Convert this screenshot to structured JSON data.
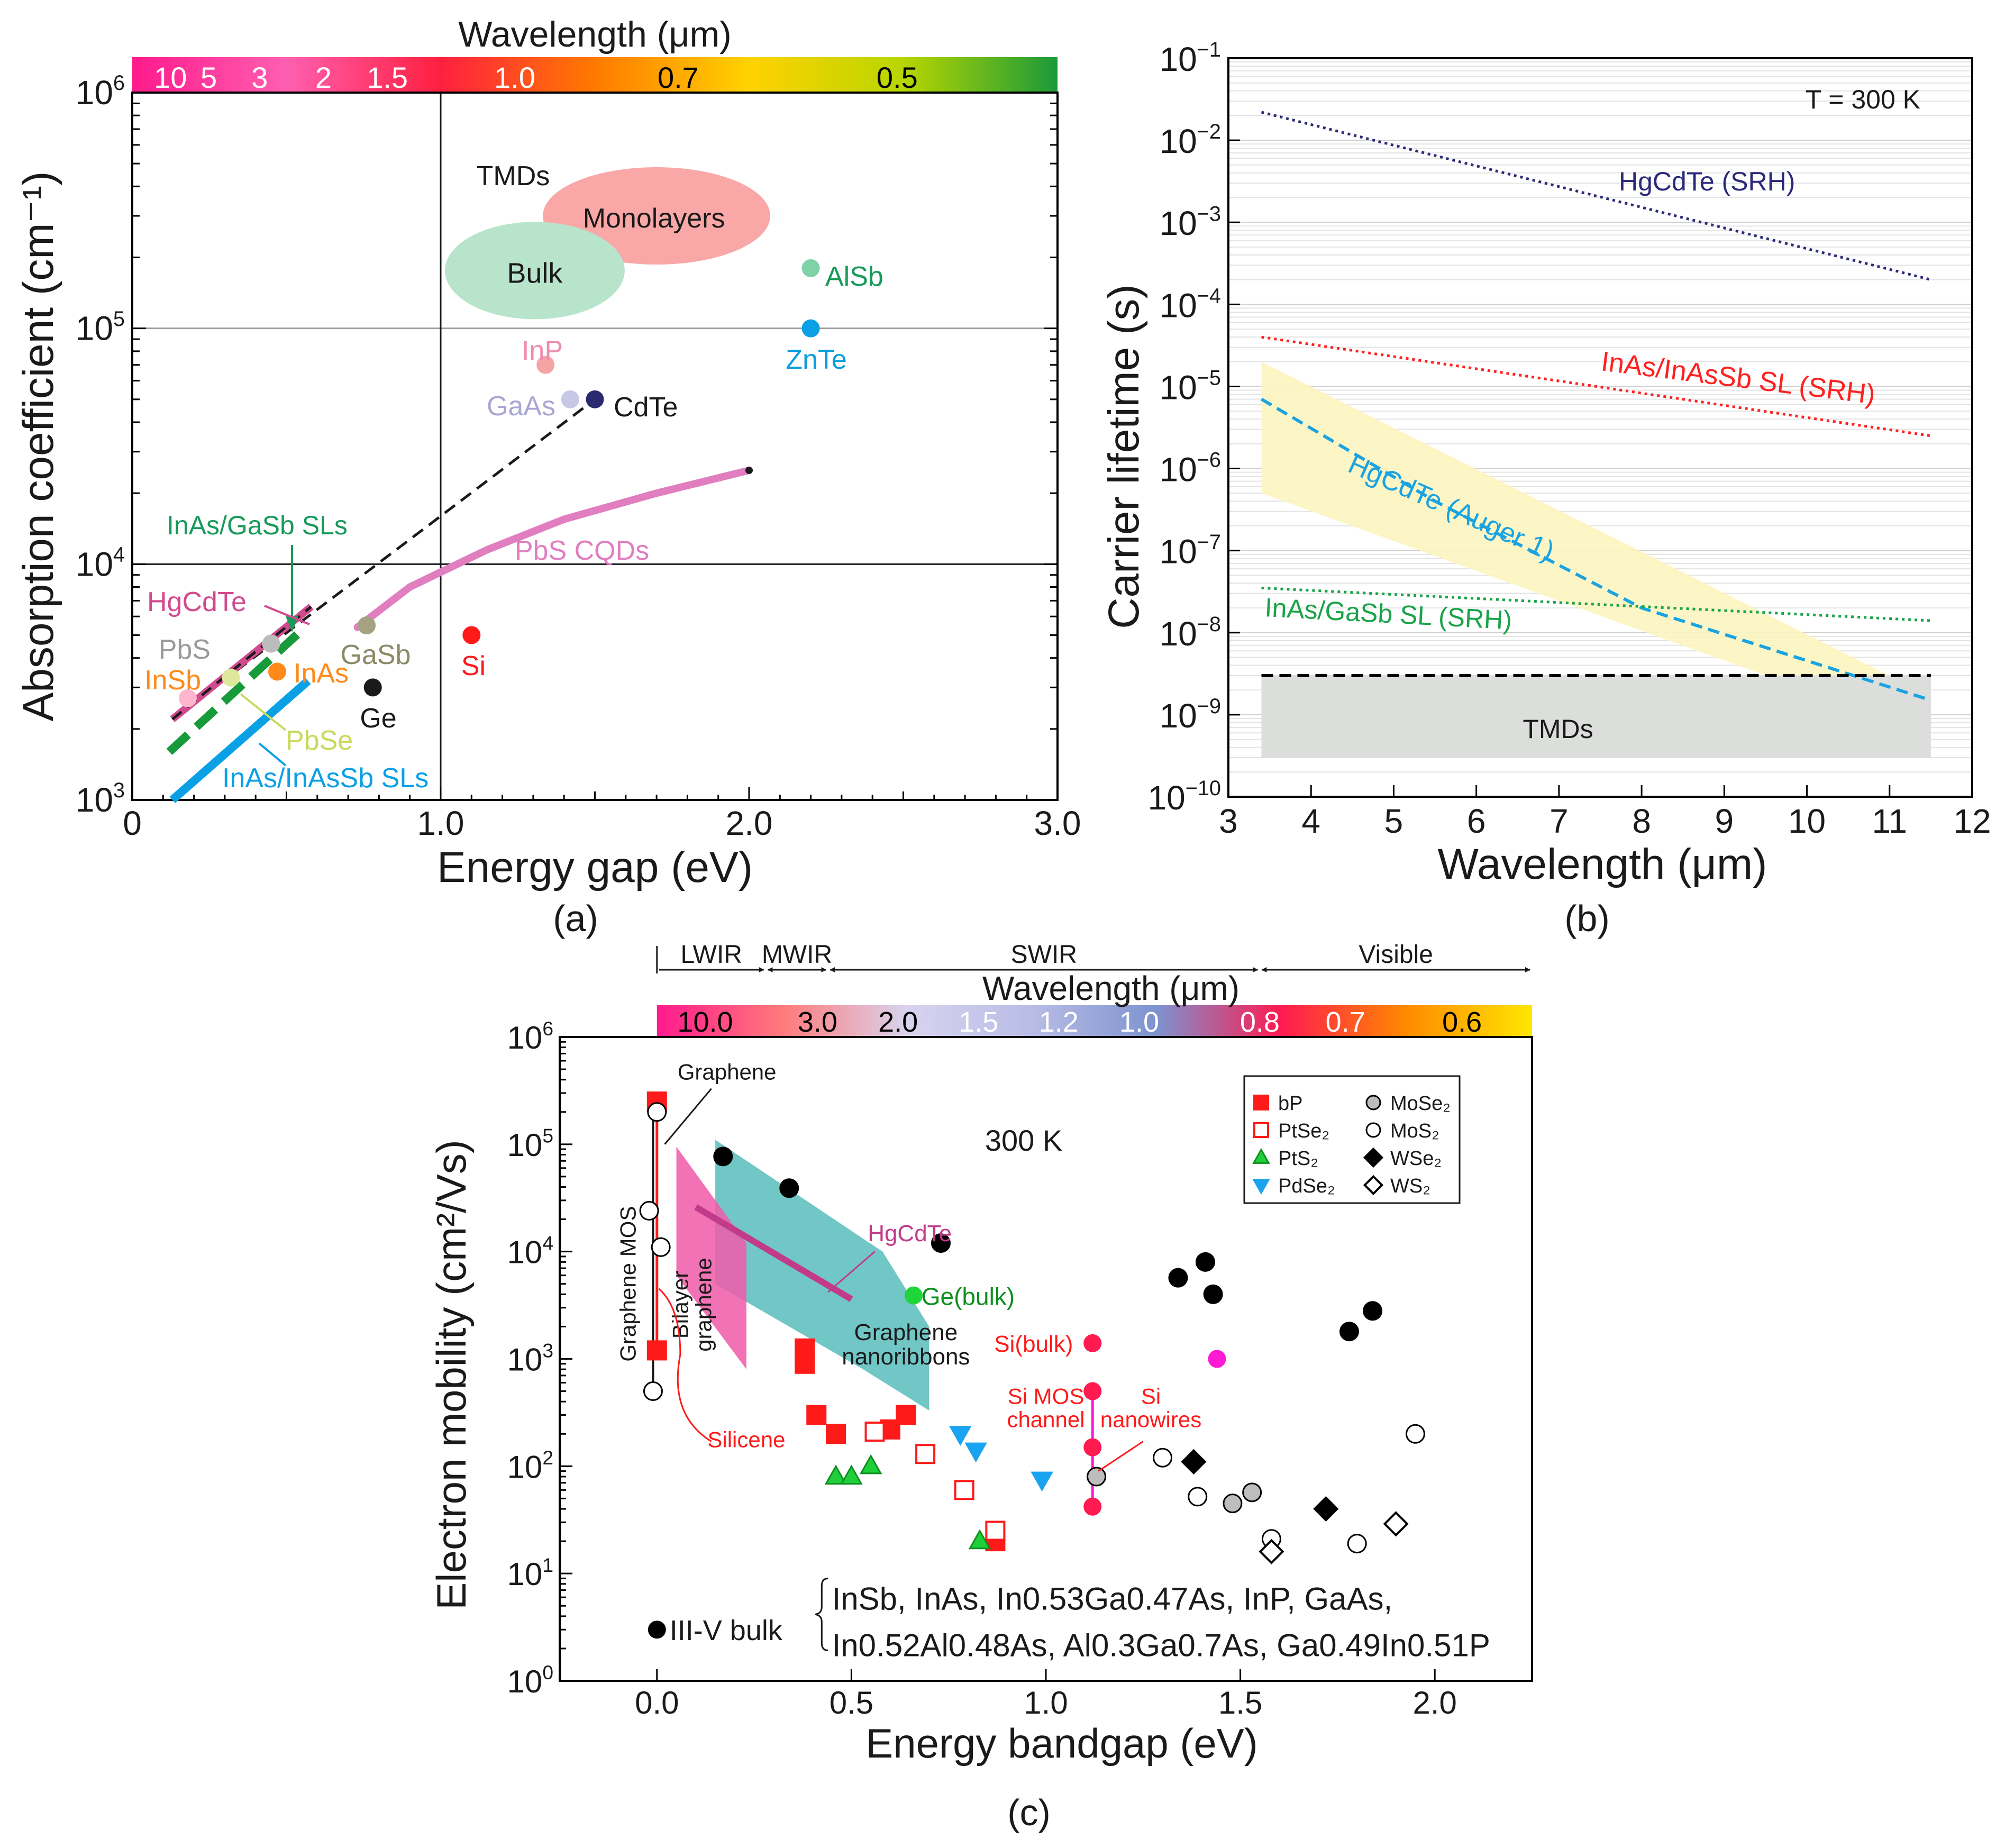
{
  "chart_data": [
    {
      "type": "scatter",
      "panel_label": "(a)",
      "xlabel": "Energy gap (eV)",
      "ylabel": "Absorption coefficient (cm⁻¹)",
      "top_axis_title": "Wavelength (μm)",
      "xlim": [
        0,
        3.0
      ],
      "ylim_log10": [
        3,
        6
      ],
      "x_ticks": [
        {
          "v": 0,
          "label": "0"
        },
        {
          "v": 1,
          "label": "1.0"
        },
        {
          "v": 2,
          "label": "2.0"
        },
        {
          "v": 3,
          "label": "3.0"
        }
      ],
      "y_ticks": [
        {
          "e": 3,
          "label": "10³"
        },
        {
          "e": 4,
          "label": "10⁴"
        },
        {
          "e": 5,
          "label": "10⁵"
        },
        {
          "e": 6,
          "label": "10⁶"
        }
      ],
      "wavelength_bar": {
        "ticks": [
          {
            "v": 0.124,
            "label": "10",
            "color": "#ffffff"
          },
          {
            "v": 0.248,
            "label": "5",
            "color": "#ffffff"
          },
          {
            "v": 0.413,
            "label": "3",
            "color": "#ffffff"
          },
          {
            "v": 0.62,
            "label": "2",
            "color": "#ffffff"
          },
          {
            "v": 0.827,
            "label": "1.5",
            "color": "#ffffff"
          },
          {
            "v": 1.24,
            "label": "1.0",
            "color": "#ffffff"
          },
          {
            "v": 1.77,
            "label": "0.7",
            "color": "#000000"
          },
          {
            "v": 2.48,
            "label": "0.5",
            "color": "#000000"
          }
        ],
        "stops": [
          "#ff1a8c",
          "#ff5fb0",
          "#ff2040",
          "#ff7a00",
          "#ffd200",
          "#b8d600",
          "#1a9a3a"
        ]
      },
      "points": [
        {
          "name": "InP",
          "x": 1.34,
          "y": 70000,
          "color": "#f5a3a3",
          "label_color": "#f08bb0"
        },
        {
          "name": "GaAs",
          "x": 1.42,
          "y": 50000,
          "color": "#c7c7e6",
          "label_color": "#a9a6d4"
        },
        {
          "name": "CdTe",
          "x": 1.5,
          "y": 50000,
          "color": "#2b2a6e",
          "label_color": "#1a1a1a"
        },
        {
          "name": "AlSb",
          "x": 2.2,
          "y": 180000,
          "color": "#7fd1a6",
          "label_color": "#179a5a"
        },
        {
          "name": "ZnTe",
          "x": 2.2,
          "y": 100000,
          "color": "#0aa0e6",
          "label_color": "#0a9ee0"
        },
        {
          "name": "Si",
          "x": 1.1,
          "y": 5000,
          "color": "#ff1a1a",
          "label_color": "#ff1a1a"
        },
        {
          "name": "Ge",
          "x": 0.78,
          "y": 3000,
          "color": "#1a1a1a",
          "label_color": "#1a1a1a"
        },
        {
          "name": "GaSb",
          "x": 0.76,
          "y": 5500,
          "color": "#a4a282",
          "label_color": "#8a8a66"
        },
        {
          "name": "InAs",
          "x": 0.47,
          "y": 3500,
          "color": "#ff8a1a",
          "label_color": "#ff8a1a"
        },
        {
          "name": "PbS",
          "x": 0.45,
          "y": 4600,
          "color": "#bcbcbc",
          "label_color": "#9a9a9a"
        },
        {
          "name": "InSb",
          "x": 0.18,
          "y": 2700,
          "color": "#ffb6cc",
          "label_color": "#ff8a1a"
        },
        {
          "name": "PbSe",
          "x": 0.32,
          "y": 3300,
          "color": "#dde89c",
          "label_color": "#c9d95c"
        }
      ],
      "regions": [
        {
          "name": "Monolayers",
          "label": "Monolayers",
          "x_center": 1.7,
          "y_center": 300000,
          "color": "#f9a7a7"
        },
        {
          "name": "Bulk",
          "label": "Bulk",
          "x_center": 1.3,
          "y_center": 190000,
          "color": "#b9e4cc"
        }
      ],
      "series_labels": {
        "tmds": "TMDs",
        "inas_gasb": "InAs/GaSb SLs",
        "hgcdte": "HgCdTe",
        "pbs_cqds": "PbS CQDs",
        "inas_inassb": "InAs/InAsSb SLs"
      },
      "lines": [
        {
          "name": "dashed-trend",
          "points": [
            [
              0.13,
              2200
            ],
            [
              1.5,
              50000
            ]
          ]
        },
        {
          "name": "PbS CQDs",
          "points": [
            [
              0.73,
              5400
            ],
            [
              0.9,
              8000
            ],
            [
              1.15,
              11500
            ],
            [
              1.4,
              15500
            ],
            [
              1.7,
              20000
            ],
            [
              2.0,
              25000
            ]
          ]
        },
        {
          "name": "HgCdTe",
          "points": [
            [
              0.13,
              2200
            ],
            [
              0.58,
              6600
            ]
          ]
        },
        {
          "name": "InAs/GaSb SLs",
          "points": [
            [
              0.12,
              1600
            ],
            [
              0.56,
              5400
            ]
          ]
        },
        {
          "name": "InAs/InAsSb SLs",
          "points": [
            [
              0.13,
              1000
            ],
            [
              0.57,
              3200
            ]
          ]
        }
      ]
    },
    {
      "type": "line",
      "panel_label": "(b)",
      "xlabel": "Wavelength (μm)",
      "ylabel": "Carrier lifetime (s)",
      "annotation": "T = 300 K",
      "xlim": [
        3,
        12
      ],
      "ylim_log10": [
        -10,
        -1
      ],
      "x_ticks": [
        3,
        4,
        5,
        6,
        7,
        8,
        9,
        10,
        11,
        12
      ],
      "y_ticks": [
        {
          "e": -1,
          "label": "10⁻¹"
        },
        {
          "e": -2,
          "label": "10⁻²"
        },
        {
          "e": -3,
          "label": "10⁻³"
        },
        {
          "e": -4,
          "label": "10⁻⁴"
        },
        {
          "e": -5,
          "label": "10⁻⁵"
        },
        {
          "e": -6,
          "label": "10⁻⁶"
        },
        {
          "e": -7,
          "label": "10⁻⁷"
        },
        {
          "e": -8,
          "label": "10⁻⁸"
        },
        {
          "e": -9,
          "label": "10⁻⁹"
        },
        {
          "e": -10,
          "label": "10⁻¹⁰"
        }
      ],
      "series": [
        {
          "name": "HgCdTe (SRH)",
          "style": "dotted",
          "color": "#2b2a7a",
          "points": [
            [
              3.4,
              0.022
            ],
            [
              11.5,
              0.0002
            ]
          ]
        },
        {
          "name": "InAs/InAsSb SL (SRH)",
          "style": "dotted",
          "color": "#ff2020",
          "points": [
            [
              3.4,
              4e-05
            ],
            [
              11.5,
              2.5e-06
            ]
          ]
        },
        {
          "name": "HgCdTe (Auger 1)",
          "style": "dashed",
          "color": "#1aa3e0",
          "points": [
            [
              3.4,
              7e-06
            ],
            [
              5.5,
              4e-07
            ],
            [
              8,
              2e-08
            ],
            [
              11.5,
              1.5e-09
            ]
          ]
        },
        {
          "name": "InAs/GaSb SL (SRH)",
          "style": "dotted",
          "color": "#1aa34a",
          "points": [
            [
              3.4,
              3.5e-08
            ],
            [
              11.5,
              1.4e-08
            ]
          ]
        },
        {
          "name": "TMDs limit",
          "style": "dashed",
          "color": "#000000",
          "points": [
            [
              3.4,
              3e-09
            ],
            [
              11.5,
              3e-09
            ]
          ]
        }
      ],
      "series_labels": {
        "hgcdte_srh": "HgCdTe (SRH)",
        "inas_inassb": "InAs/InAsSb SL (SRH)",
        "hgcdte_auger": "HgCdTe (Auger 1)",
        "inas_gasb": "InAs/GaSb SL (SRH)",
        "tmds": "TMDs"
      },
      "bands": [
        {
          "name": "HgCdTe Auger band",
          "color": "#fcf5c0",
          "upper": [
            [
              3.4,
              2e-05
            ],
            [
              11,
              3e-09
            ]
          ],
          "lower": [
            [
              3.4,
              5e-07
            ],
            [
              9.5,
              3e-09
            ]
          ]
        },
        {
          "name": "TMDs",
          "color": "#dcdedc",
          "x": [
            3.4,
            11.5
          ],
          "y": [
            3e-10,
            3e-09
          ]
        }
      ]
    },
    {
      "type": "scatter",
      "panel_label": "(c)",
      "xlabel": "Energy bandgap (eV)",
      "ylabel": "Electron mobility (cm²/Vs)",
      "top_axis_title": "Wavelength (μm)",
      "annotation": "300 K",
      "xlim": [
        -0.25,
        2.25
      ],
      "ylim_log10": [
        0,
        6
      ],
      "x_ticks": [
        {
          "v": 0,
          "label": "0.0"
        },
        {
          "v": 0.5,
          "label": "0.5"
        },
        {
          "v": 1,
          "label": "1.0"
        },
        {
          "v": 1.5,
          "label": "1.5"
        },
        {
          "v": 2,
          "label": "2.0"
        }
      ],
      "y_ticks": [
        {
          "e": 0,
          "label": "10⁰"
        },
        {
          "e": 1,
          "label": "10¹"
        },
        {
          "e": 2,
          "label": "10²"
        },
        {
          "e": 3,
          "label": "10³"
        },
        {
          "e": 4,
          "label": "10⁴"
        },
        {
          "e": 5,
          "label": "10⁵"
        },
        {
          "e": 6,
          "label": "10⁶"
        }
      ],
      "wavelength_bar": {
        "ticks": [
          {
            "v": 0.124,
            "label": "10.0",
            "color": "#000000"
          },
          {
            "v": 0.413,
            "label": "3.0",
            "color": "#000000"
          },
          {
            "v": 0.62,
            "label": "2.0",
            "color": "#000000"
          },
          {
            "v": 0.827,
            "label": "1.5",
            "color": "#ffffff"
          },
          {
            "v": 1.033,
            "label": "1.2",
            "color": "#ffffff"
          },
          {
            "v": 1.24,
            "label": "1.0",
            "color": "#ffffff"
          },
          {
            "v": 1.55,
            "label": "0.8",
            "color": "#ffffff"
          },
          {
            "v": 1.77,
            "label": "0.7",
            "color": "#ffffff"
          },
          {
            "v": 2.07,
            "label": "0.6",
            "color": "#000000"
          }
        ],
        "stops": [
          "#ff1a8c",
          "#ff7a7a",
          "#d8d4ee",
          "#b8bce6",
          "#7d93cf",
          "#ff1a50",
          "#ff8a00",
          "#ffe600"
        ]
      },
      "bands_header": [
        {
          "label": "LWIR",
          "from": 0,
          "to": 0.28
        },
        {
          "label": "MWIR",
          "from": 0.28,
          "to": 0.44
        },
        {
          "label": "SWIR",
          "from": 0.44,
          "to": 1.55
        },
        {
          "label": "Visible",
          "from": 1.55,
          "to": 2.25
        }
      ],
      "legend": [
        {
          "label": "bP",
          "marker": "square",
          "fill": "#ff1a1a",
          "stroke": "#ff1a1a"
        },
        {
          "label": "PtSe₂",
          "marker": "square",
          "fill": "#ffffff",
          "stroke": "#ff1a1a"
        },
        {
          "label": "PtS₂",
          "marker": "triangle-up",
          "fill": "#1fcf3a",
          "stroke": "#0f8f20"
        },
        {
          "label": "PdSe₂",
          "marker": "triangle-down",
          "fill": "#1aa3f0",
          "stroke": "#1aa3f0"
        },
        {
          "label": "MoSe₂",
          "marker": "circle",
          "fill": "#bdbdbd",
          "stroke": "#000000"
        },
        {
          "label": "MoS₂",
          "marker": "circle",
          "fill": "#ffffff",
          "stroke": "#000000"
        },
        {
          "label": "WSe₂",
          "marker": "diamond",
          "fill": "#000000",
          "stroke": "#000000"
        },
        {
          "label": "WS₂",
          "marker": "diamond",
          "fill": "#ffffff",
          "stroke": "#000000"
        }
      ],
      "series": [
        {
          "name": "bP",
          "marker": "square",
          "fill": "#ff1a1a",
          "stroke": "#ff1a1a",
          "points": [
            [
              0.0,
              250000
            ],
            [
              0.0,
              1200
            ],
            [
              0.38,
              1250
            ],
            [
              0.38,
              900
            ],
            [
              0.41,
              300
            ],
            [
              0.46,
              200
            ],
            [
              0.6,
              220
            ],
            [
              0.64,
              300
            ],
            [
              0.87,
              20
            ]
          ]
        },
        {
          "name": "PtSe2",
          "marker": "square",
          "fill": "#ffffff",
          "stroke": "#ff1a1a",
          "points": [
            [
              0.56,
              210
            ],
            [
              0.69,
              130
            ],
            [
              0.79,
              60
            ],
            [
              0.87,
              25
            ]
          ]
        },
        {
          "name": "PtS2",
          "marker": "triangle-up",
          "fill": "#1fcf3a",
          "stroke": "#0f8f20",
          "points": [
            [
              0.46,
              80
            ],
            [
              0.5,
              80
            ],
            [
              0.55,
              100
            ],
            [
              0.83,
              20
            ]
          ]
        },
        {
          "name": "PdSe2",
          "marker": "triangle-down",
          "fill": "#1aa3f0",
          "stroke": "#1aa3f0",
          "points": [
            [
              0.78,
              200
            ],
            [
              0.82,
              140
            ],
            [
              0.99,
              75
            ]
          ]
        },
        {
          "name": "MoSe2",
          "marker": "circle",
          "fill": "#bdbdbd",
          "stroke": "#000000",
          "points": [
            [
              1.13,
              80
            ],
            [
              1.48,
              45
            ],
            [
              1.53,
              57
            ]
          ]
        },
        {
          "name": "MoS2",
          "marker": "circle",
          "fill": "#ffffff",
          "stroke": "#000000",
          "points": [
            [
              -0.02,
              24000
            ],
            [
              0.0,
              200000
            ],
            [
              0.01,
              11000
            ],
            [
              -0.01,
              500
            ],
            [
              1.3,
              120
            ],
            [
              1.39,
              52
            ],
            [
              1.58,
              21
            ],
            [
              1.8,
              19
            ],
            [
              1.95,
              200
            ]
          ]
        },
        {
          "name": "WSe2",
          "marker": "diamond",
          "fill": "#000000",
          "stroke": "#000000",
          "points": [
            [
              1.38,
              110
            ],
            [
              1.72,
              40
            ]
          ]
        },
        {
          "name": "WS2",
          "marker": "diamond",
          "fill": "#ffffff",
          "stroke": "#000000",
          "points": [
            [
              1.58,
              16
            ],
            [
              1.9,
              29
            ]
          ]
        },
        {
          "name": "III-V bulk",
          "marker": "circle",
          "fill": "#000000",
          "stroke": "#000000",
          "points": [
            [
              0.17,
              77000
            ],
            [
              0.34,
              39000
            ],
            [
              0.73,
              12000
            ],
            [
              1.34,
              5700
            ],
            [
              1.41,
              8000
            ],
            [
              1.43,
              4000
            ],
            [
              1.78,
              1800
            ],
            [
              1.84,
              2800
            ]
          ]
        }
      ],
      "highlight_points": [
        {
          "name": "Ge(bulk)",
          "x": 0.66,
          "y": 3900,
          "color": "#1ed63a",
          "label": "Ge(bulk)",
          "label_color": "#0f8f20"
        },
        {
          "name": "Si(bulk)",
          "x": 1.12,
          "y": 1400,
          "color": "#ff1a50",
          "label": "Si(bulk)",
          "label_color": "#ff1a1a"
        },
        {
          "name": "GaAs-magenta",
          "x": 1.44,
          "y": 1000,
          "color": "#ff1ad6",
          "label": "",
          "label_color": "#ff1ad6"
        },
        {
          "name": "Si MOS channel",
          "x": 1.12,
          "y": 500,
          "color": "#ff1a50",
          "label": "Si MOS channel",
          "label_color": "#ff1a1a"
        },
        {
          "name": "Si nanowires high",
          "x": 1.12,
          "y": 150,
          "color": "#ff1a50",
          "label": "",
          "label_color": "#ff1a1a"
        },
        {
          "name": "Si nanowires low",
          "x": 1.12,
          "y": 42,
          "color": "#ff1a50",
          "label": "Si nanowires",
          "label_color": "#ff1a1a"
        }
      ],
      "annotations": [
        {
          "key": "graphene",
          "text": "Graphene"
        },
        {
          "key": "graphene_mos",
          "text": "Graphene MOS"
        },
        {
          "key": "bilayer",
          "text": "Bilayer graphene"
        },
        {
          "key": "hgcdte",
          "text": "HgCdTe"
        },
        {
          "key": "nanoribbons",
          "text": "Graphene nanoribbons"
        },
        {
          "key": "silicene",
          "text": "Silicene"
        }
      ],
      "footnote": {
        "marker_label": "III-V bulk",
        "line1": "InSb, InAs, In0.53Ga0.47As, InP, GaAs,",
        "line2": "In0.52Al0.48As, Al0.3Ga0.7As, Ga0.49In0.51P"
      }
    }
  ]
}
